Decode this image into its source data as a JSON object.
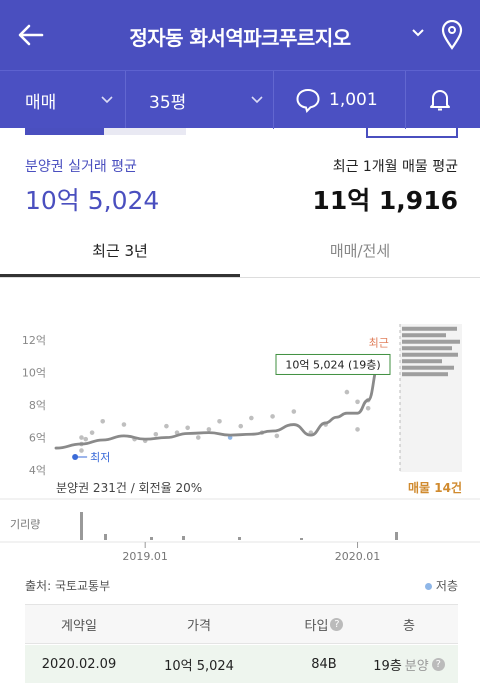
{
  "header": {
    "title": "정자동 화서역파크푸르지오",
    "icons": [
      "back-arrow-icon",
      "chevron-down-icon",
      "map-pin-icon"
    ]
  },
  "filters": {
    "trade_type": "매매",
    "area": "35평",
    "comment_count": "1,001",
    "icons": [
      "chevron-down-icon",
      "comment-icon",
      "bell-icon"
    ]
  },
  "summary": {
    "left_label": "분양권 실거래 평균",
    "left_value": "10억 5,024",
    "right_label": "최근 1개월 매물 평균",
    "right_value": "11억 1,916"
  },
  "tabs": [
    "최근 3년",
    "매매/전세"
  ],
  "chart_labels": {
    "tooltip": "10억 5,024 (19층)",
    "latest_marker": "최근",
    "min_marker": "최저",
    "footer_left": "분양권 231건 / 회전율 20%",
    "footer_right": "매물 14건",
    "volume_label": "기리량"
  },
  "chart_data": {
    "type": "line",
    "ylabel": "",
    "y_ticks": [
      "4억",
      "6억",
      "8억",
      "10억",
      "12억"
    ],
    "ylim": [
      4,
      12.5
    ],
    "x_ticks": [
      "2019.01",
      "2020.01"
    ],
    "x_tick_positions": [
      2019.0,
      2020.0
    ],
    "xlim": [
      2018.58,
      2020.2
    ],
    "series": [
      {
        "values": [
          [
            2018.58,
            5.35
          ],
          [
            2018.7,
            5.6
          ],
          [
            2018.8,
            5.85
          ],
          [
            2018.9,
            6.1
          ],
          [
            2019.0,
            5.9
          ],
          [
            2019.1,
            6.0
          ],
          [
            2019.2,
            6.25
          ],
          [
            2019.3,
            6.3
          ],
          [
            2019.4,
            6.15
          ],
          [
            2019.5,
            6.2
          ],
          [
            2019.6,
            6.4
          ],
          [
            2019.7,
            6.8
          ],
          [
            2019.78,
            6.15
          ],
          [
            2019.85,
            6.9
          ],
          [
            2019.9,
            7.25
          ],
          [
            2019.95,
            7.5
          ],
          [
            2020.0,
            7.5
          ],
          [
            2020.05,
            8.3
          ],
          [
            2020.1,
            10.5
          ]
        ]
      }
    ],
    "scatter_points": [
      [
        2018.7,
        5.2
      ],
      [
        2018.7,
        5.6
      ],
      [
        2018.7,
        6.0
      ],
      [
        2018.72,
        5.9
      ],
      [
        2018.75,
        6.3
      ],
      [
        2018.8,
        7.0
      ],
      [
        2018.9,
        6.8
      ],
      [
        2018.95,
        5.9
      ],
      [
        2019.0,
        5.8
      ],
      [
        2019.05,
        6.2
      ],
      [
        2019.1,
        6.7
      ],
      [
        2019.15,
        6.3
      ],
      [
        2019.2,
        6.6
      ],
      [
        2019.25,
        6.0
      ],
      [
        2019.3,
        6.5
      ],
      [
        2019.35,
        7.0
      ],
      [
        2019.4,
        6.0
      ],
      [
        2019.45,
        6.7
      ],
      [
        2019.5,
        7.2
      ],
      [
        2019.55,
        6.3
      ],
      [
        2019.6,
        7.3
      ],
      [
        2019.62,
        6.1
      ],
      [
        2019.7,
        7.6
      ],
      [
        2019.78,
        6.3
      ],
      [
        2019.85,
        6.8
      ],
      [
        2019.95,
        8.8
      ],
      [
        2020.0,
        8.2
      ],
      [
        2020.0,
        6.5
      ],
      [
        2020.05,
        7.8
      ],
      [
        2020.05,
        8.3
      ]
    ],
    "highlight_point": [
      2020.1,
      10.5
    ],
    "min_point": [
      2018.67,
      4.8
    ],
    "listing_bars_y": [
      12.7,
      12.3,
      11.9,
      11.5,
      11.1,
      10.7,
      10.3,
      9.9
    ],
    "colors": {
      "line": "#8a8a8a",
      "scatter": "#bfbfbf",
      "scatter_low": "#8fb7e8",
      "highlight": "#4b6bd8",
      "tooltip_border": "#3f8f3f",
      "marker_recent": "#e07f5b",
      "min": "#3b6bd8"
    },
    "grid": false,
    "legend": "none"
  },
  "footer": {
    "source": "출처: 국토교통부",
    "legend_text": "저층",
    "legend_color": "#8fb7e8"
  },
  "table": {
    "headers": [
      "계약일",
      "가격",
      "타입",
      "층"
    ],
    "row": {
      "date": "2020.02.09",
      "price": "10억 5,024",
      "type": "84B",
      "floor": "19층",
      "floor_note": "분양"
    }
  }
}
